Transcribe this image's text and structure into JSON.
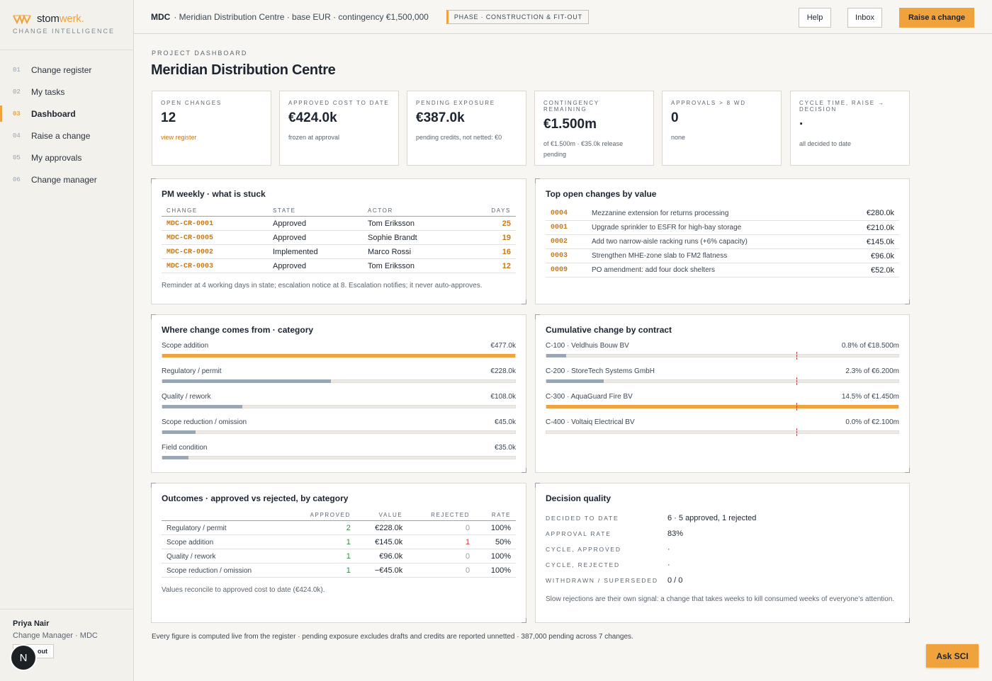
{
  "brand": {
    "name_a": "stom",
    "name_b": "werk.",
    "subtitle": "CHANGE INTELLIGENCE"
  },
  "nav": [
    {
      "num": "01",
      "label": "Change register"
    },
    {
      "num": "02",
      "label": "My tasks"
    },
    {
      "num": "03",
      "label": "Dashboard",
      "active": true
    },
    {
      "num": "04",
      "label": "Raise a change"
    },
    {
      "num": "05",
      "label": "My approvals"
    },
    {
      "num": "06",
      "label": "Change manager"
    }
  ],
  "user": {
    "name": "Priya Nair",
    "role": "Change Manager · MDC",
    "signout": "out",
    "badge": "N"
  },
  "topbar": {
    "code": "MDC",
    "info": "· Meridian Distribution Centre · base EUR · contingency €1,500,000",
    "phase": "PHASE · CONSTRUCTION & FIT-OUT",
    "help": "Help",
    "inbox": "Inbox",
    "raise": "Raise a change"
  },
  "page": {
    "kicker": "PROJECT DASHBOARD",
    "title": "Meridian Distribution Centre"
  },
  "kpis": [
    {
      "label": "OPEN CHANGES",
      "value": "12",
      "sub": "view register",
      "link": true
    },
    {
      "label": "APPROVED COST TO DATE",
      "value": "€424.0k",
      "sub": "frozen at approval"
    },
    {
      "label": "PENDING EXPOSURE",
      "value": "€387.0k",
      "sub": "pending credits, not netted: €0"
    },
    {
      "label": "CONTINGENCY REMAINING",
      "value": "€1.500m",
      "sub": "of €1.500m · €35.0k release pending"
    },
    {
      "label": "APPROVALS > 8 WD",
      "value": "0",
      "sub": "none"
    },
    {
      "label": "CYCLE TIME, RAISE → DECISION",
      "value": "·",
      "sub": "all decided to date"
    }
  ],
  "stuck": {
    "title": "PM weekly · what is stuck",
    "headers": [
      "CHANGE",
      "STATE",
      "ACTOR",
      "DAYS"
    ],
    "rows": [
      {
        "change": "MDC-CR-0001",
        "state": "Approved",
        "actor": "Tom Eriksson",
        "days": "25"
      },
      {
        "change": "MDC-CR-0005",
        "state": "Approved",
        "actor": "Sophie Brandt",
        "days": "19"
      },
      {
        "change": "MDC-CR-0002",
        "state": "Implemented",
        "actor": "Marco Rossi",
        "days": "16"
      },
      {
        "change": "MDC-CR-0003",
        "state": "Approved",
        "actor": "Tom Eriksson",
        "days": "12"
      }
    ],
    "note": "Reminder at 4 working days in state; escalation notice at 8. Escalation notifies; it never auto-approves."
  },
  "top_open": {
    "title": "Top open changes by value",
    "rows": [
      {
        "ref": "0004",
        "desc": "Mezzanine extension for returns processing",
        "value": "€280.0k"
      },
      {
        "ref": "0001",
        "desc": "Upgrade sprinkler to ESFR for high-bay storage",
        "value": "€210.0k"
      },
      {
        "ref": "0002",
        "desc": "Add two narrow-aisle racking runs (+6% capacity)",
        "value": "€145.0k"
      },
      {
        "ref": "0003",
        "desc": "Strengthen MHE-zone slab to FM2 flatness",
        "value": "€96.0k"
      },
      {
        "ref": "0009",
        "desc": "PO amendment: add four dock shelters",
        "value": "€52.0k"
      }
    ]
  },
  "category": {
    "title": "Where change comes from · category",
    "rows": [
      {
        "label": "Scope addition",
        "value": "€477.0k",
        "amount": 477.0,
        "hot": true
      },
      {
        "label": "Regulatory / permit",
        "value": "€228.0k",
        "amount": 228.0
      },
      {
        "label": "Quality / rework",
        "value": "€108.0k",
        "amount": 108.0
      },
      {
        "label": "Scope reduction / omission",
        "value": "€45.0k",
        "amount": 45.0
      },
      {
        "label": "Field condition",
        "value": "€35.0k",
        "amount": 35.0
      }
    ]
  },
  "contract": {
    "title": "Cumulative change by contract",
    "threshold_pct": 10,
    "rows": [
      {
        "label": "C-100 · Veldhuis Bouw BV",
        "value": "0.8% of €18.500m",
        "pct": 0.8
      },
      {
        "label": "C-200 · StoreTech Systems GmbH",
        "value": "2.3% of €6.200m",
        "pct": 2.3
      },
      {
        "label": "C-300 · AquaGuard Fire BV",
        "value": "14.5% of €1.450m",
        "pct": 14.5,
        "hot": true
      },
      {
        "label": "C-400 · Voltaiq Electrical BV",
        "value": "0.0% of €2.100m",
        "pct": 0.0
      }
    ]
  },
  "outcomes": {
    "title": "Outcomes · approved vs rejected, by category",
    "headers": [
      "",
      "APPROVED",
      "VALUE",
      "REJECTED",
      "RATE"
    ],
    "rows": [
      {
        "cat": "Regulatory / permit",
        "approved": "2",
        "value": "€228.0k",
        "rejected": "0",
        "rate": "100%"
      },
      {
        "cat": "Scope addition",
        "approved": "1",
        "value": "€145.0k",
        "rejected": "1",
        "rate": "50%"
      },
      {
        "cat": "Quality / rework",
        "approved": "1",
        "value": "€96.0k",
        "rejected": "0",
        "rate": "100%"
      },
      {
        "cat": "Scope reduction / omission",
        "approved": "1",
        "value": "−€45.0k",
        "rejected": "0",
        "rate": "100%"
      }
    ],
    "note": "Values reconcile to approved cost to date (€424.0k)."
  },
  "decision": {
    "title": "Decision quality",
    "rows": [
      {
        "k": "DECIDED TO DATE",
        "v": "6 · 5 approved, 1 rejected"
      },
      {
        "k": "APPROVAL RATE",
        "v": "83%"
      },
      {
        "k": "CYCLE, APPROVED",
        "v": "·"
      },
      {
        "k": "CYCLE, REJECTED",
        "v": "·"
      },
      {
        "k": "WITHDRAWN / SUPERSEDED",
        "v": "0 / 0"
      }
    ],
    "note": "Slow rejections are their own signal: a change that takes weeks to kill consumed weeks of everyone's attention."
  },
  "footer": "Every figure is computed live from the register · pending exposure excludes drafts and credits are reported unnetted · 387,000 pending across 7 changes.",
  "ask": "Ask SCI",
  "colors": {
    "accent": "#f0a23c",
    "link": "#c87a1a",
    "bar": "#9aa6b4",
    "green": "#2e8a43",
    "red": "#d43a3a"
  }
}
